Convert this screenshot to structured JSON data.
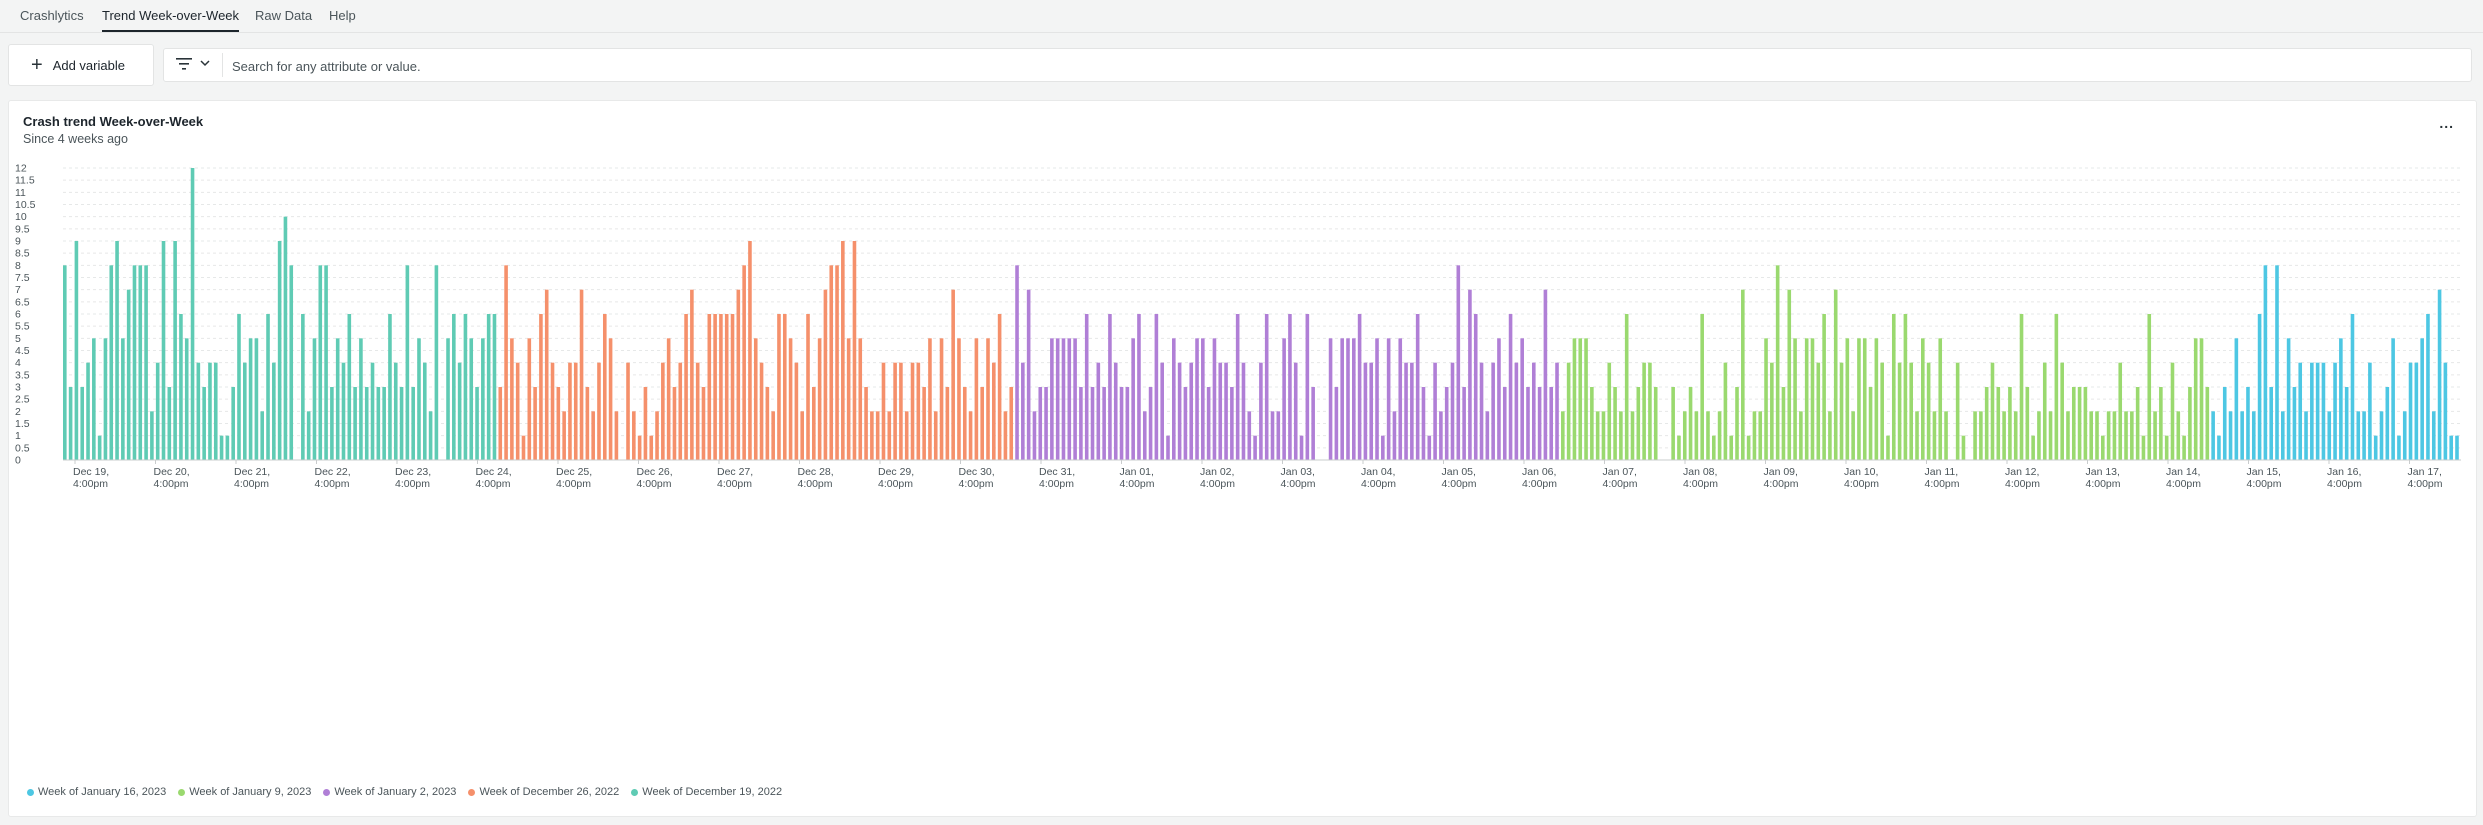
{
  "tabs": [
    {
      "label": "Crashlytics",
      "active": false
    },
    {
      "label": "Trend Week-over-Week",
      "active": true
    },
    {
      "label": "Raw Data",
      "active": false
    },
    {
      "label": "Help",
      "active": false
    }
  ],
  "filter_bar": {
    "add_variable_label": "Add variable",
    "search_placeholder": "Search for any attribute or value."
  },
  "card": {
    "title": "Crash trend Week-over-Week",
    "subtitle": "Since 4 weeks ago",
    "menu_label": "..."
  },
  "chart_data": {
    "type": "bar",
    "title": "Crash trend Week-over-Week",
    "subtitle": "Since 4 weeks ago",
    "ylim": [
      0,
      12
    ],
    "yticks": [
      "0",
      "0.5",
      "1",
      "1.5",
      "2",
      "2.5",
      "3",
      "3.5",
      "4",
      "4.5",
      "5",
      "5.5",
      "6",
      "6.5",
      "7",
      "7.5",
      "8",
      "8.5",
      "9",
      "9.5",
      "10",
      "10.5",
      "11",
      "11.5",
      "12"
    ],
    "xticks": [
      [
        "Dec 19,",
        "4:00pm"
      ],
      [
        "Dec 20,",
        "4:00pm"
      ],
      [
        "Dec 21,",
        "4:00pm"
      ],
      [
        "Dec 22,",
        "4:00pm"
      ],
      [
        "Dec 23,",
        "4:00pm"
      ],
      [
        "Dec 24,",
        "4:00pm"
      ],
      [
        "Dec 25,",
        "4:00pm"
      ],
      [
        "Dec 26,",
        "4:00pm"
      ],
      [
        "Dec 27,",
        "4:00pm"
      ],
      [
        "Dec 28,",
        "4:00pm"
      ],
      [
        "Dec 29,",
        "4:00pm"
      ],
      [
        "Dec 30,",
        "4:00pm"
      ],
      [
        "Dec 31,",
        "4:00pm"
      ],
      [
        "Jan 01,",
        "4:00pm"
      ],
      [
        "Jan 02,",
        "4:00pm"
      ],
      [
        "Jan 03,",
        "4:00pm"
      ],
      [
        "Jan 04,",
        "4:00pm"
      ],
      [
        "Jan 05,",
        "4:00pm"
      ],
      [
        "Jan 06,",
        "4:00pm"
      ],
      [
        "Jan 07,",
        "4:00pm"
      ],
      [
        "Jan 08,",
        "4:00pm"
      ],
      [
        "Jan 09,",
        "4:00pm"
      ],
      [
        "Jan 10,",
        "4:00pm"
      ],
      [
        "Jan 11,",
        "4:00pm"
      ],
      [
        "Jan 12,",
        "4:00pm"
      ],
      [
        "Jan 13,",
        "4:00pm"
      ],
      [
        "Jan 14,",
        "4:00pm"
      ],
      [
        "Jan 15,",
        "4:00pm"
      ],
      [
        "Jan 16,",
        "4:00pm"
      ],
      [
        "Jan 17,",
        "4:00pm"
      ]
    ],
    "x_start": "Dec 18, 2022 7:30pm",
    "bucket": "1 hour (approx.)",
    "grid": true,
    "legend_position": "bottom-left",
    "legend": [
      {
        "name": "Week of January 16, 2023",
        "color": "#4dc7e3"
      },
      {
        "name": "Week of January 9, 2023",
        "color": "#9ad96f"
      },
      {
        "name": "Week of January 2, 2023",
        "color": "#b07fd6"
      },
      {
        "name": "Week of December 26, 2022",
        "color": "#f5906b"
      },
      {
        "name": "Week of December 19, 2022",
        "color": "#5fcbb4"
      }
    ],
    "series": [
      {
        "name": "Week of December 19, 2022",
        "color": "#5fcbb4",
        "values": [
          8,
          3,
          9,
          3,
          4,
          5,
          1,
          5,
          8,
          9,
          5,
          7,
          8,
          8,
          8,
          2,
          4,
          9,
          3,
          9,
          6,
          5,
          12,
          4,
          3,
          4,
          4,
          1,
          1,
          3,
          6,
          4,
          5,
          5,
          2,
          6,
          4,
          9,
          10,
          8,
          0,
          6,
          2,
          5,
          8,
          8,
          3,
          5,
          4,
          6,
          3,
          5,
          3,
          4,
          3,
          3,
          6,
          4,
          3,
          8,
          3,
          5,
          4,
          2,
          8,
          0,
          5,
          6,
          4,
          6,
          5,
          3,
          5,
          6,
          6
        ]
      },
      {
        "name": "Week of December 26, 2022",
        "color": "#f5906b",
        "values": [
          3,
          8,
          5,
          4,
          1,
          5,
          3,
          6,
          7,
          4,
          3,
          2,
          4,
          4,
          7,
          3,
          2,
          4,
          6,
          5,
          2,
          0,
          4,
          2,
          1,
          3,
          1,
          2,
          4,
          5,
          3,
          4,
          6,
          7,
          4,
          3,
          6,
          6,
          6,
          6,
          6,
          7,
          8,
          9,
          5,
          4,
          3,
          2,
          6,
          6,
          5,
          4,
          2,
          6,
          3,
          5,
          7,
          8,
          8,
          9,
          5,
          9,
          5,
          3,
          2,
          2,
          4,
          2,
          4,
          4,
          2,
          4,
          4,
          3,
          5,
          2,
          5,
          3,
          7,
          5,
          3,
          2,
          5,
          3,
          5,
          4,
          6,
          2,
          3
        ]
      },
      {
        "name": "Week of January 2, 2023",
        "color": "#b07fd6",
        "values": [
          8,
          4,
          7,
          2,
          3,
          3,
          5,
          5,
          5,
          5,
          5,
          3,
          6,
          3,
          4,
          3,
          6,
          4,
          3,
          3,
          5,
          6,
          2,
          3,
          6,
          4,
          1,
          5,
          4,
          3,
          4,
          5,
          5,
          3,
          5,
          4,
          4,
          3,
          6,
          4,
          2,
          1,
          4,
          6,
          2,
          2,
          5,
          6,
          4,
          1,
          6,
          3,
          0,
          0,
          5,
          3,
          5,
          5,
          5,
          6,
          4,
          4,
          5,
          1,
          5,
          2,
          5,
          4,
          4,
          6,
          3,
          1,
          4,
          2,
          3,
          4,
          8,
          3,
          7,
          6,
          4,
          2,
          4,
          5,
          3,
          6,
          4,
          5,
          3,
          4,
          3,
          7,
          3,
          4
        ]
      },
      {
        "name": "Week of January 9, 2023",
        "color": "#9ad96f",
        "values": [
          2,
          4,
          5,
          5,
          5,
          3,
          2,
          2,
          4,
          3,
          2,
          6,
          2,
          3,
          4,
          4,
          3,
          0,
          0,
          3,
          1,
          2,
          3,
          2,
          6,
          2,
          1,
          2,
          4,
          1,
          3,
          7,
          1,
          2,
          2,
          5,
          4,
          8,
          3,
          7,
          5,
          2,
          5,
          5,
          4,
          6,
          2,
          7,
          4,
          5,
          2,
          5,
          5,
          3,
          5,
          4,
          1,
          6,
          4,
          6,
          4,
          2,
          5,
          4,
          2,
          5,
          2,
          0,
          4,
          1,
          0,
          2,
          2,
          3,
          4,
          3,
          2,
          3,
          2,
          6,
          3,
          1,
          2,
          4,
          2,
          6,
          4,
          2,
          3,
          3,
          3,
          2,
          2,
          1,
          2,
          2,
          4,
          2,
          2,
          3,
          1,
          6,
          2,
          3,
          1,
          4,
          2,
          1,
          3,
          5,
          5,
          3
        ]
      },
      {
        "name": "Week of January 16, 2023",
        "color": "#4dc7e3",
        "values": [
          2,
          1,
          3,
          2,
          5,
          2,
          3,
          2,
          6,
          8,
          3,
          8,
          2,
          5,
          3,
          4,
          2,
          4,
          4,
          4,
          2,
          4,
          5,
          3,
          6,
          2,
          2,
          4,
          1,
          2,
          3,
          5,
          1,
          2,
          4,
          4,
          5,
          6,
          2,
          7,
          4,
          1,
          1
        ]
      }
    ]
  }
}
